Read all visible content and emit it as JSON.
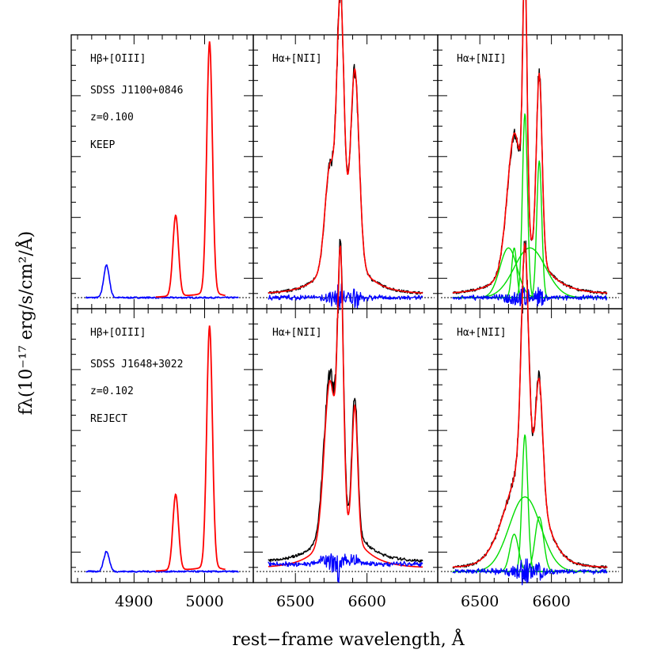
{
  "xlabel": "rest−frame wavelength, Å",
  "ylabel": "fλ(10⁻¹⁷ erg/s/cm²/Å)",
  "colors": {
    "data": "#000000",
    "model": "#ff0000",
    "residual": "#0000ff",
    "components": "#00dd00"
  },
  "chart_data": [
    {
      "type": "line",
      "row": "top",
      "column": "left",
      "label": "Hβ+[OIII]",
      "object": "SDSS J1100+0846",
      "redshift": "z=0.100",
      "decision": "KEEP",
      "xlim": [
        4820,
        5060
      ],
      "x_ticks": [
        4900,
        5000
      ],
      "lines": [
        {
          "center": 4861,
          "amp": 0.13,
          "sigma": 4,
          "series": "residual"
        },
        {
          "center": 4959,
          "amp": 0.32,
          "sigma": 4,
          "series": "model"
        },
        {
          "center": 5007,
          "amp": 1.0,
          "sigma": 4,
          "series": "model"
        }
      ]
    },
    {
      "type": "line",
      "row": "top",
      "column": "middle",
      "label": "Hα+[NII]",
      "xlim": [
        6450,
        6690
      ],
      "x_ticks": [
        6500,
        6600
      ],
      "lines": [
        {
          "center": 6548,
          "amp": 0.38,
          "sigma": 7
        },
        {
          "center": 6563,
          "amp": 1.0,
          "sigma": 5
        },
        {
          "center": 6583,
          "amp": 0.75,
          "sigma": 6
        }
      ]
    },
    {
      "type": "line",
      "row": "top",
      "column": "right",
      "label": "Hα+[NII]",
      "xlim": [
        6450,
        6690
      ],
      "x_ticks": [
        6500,
        6600
      ],
      "lines": [
        {
          "center": 6548,
          "amp": 0.5,
          "sigma": 10
        },
        {
          "center": 6563,
          "amp": 1.0,
          "sigma": 3
        },
        {
          "center": 6583,
          "amp": 0.73,
          "sigma": 4
        }
      ],
      "components": [
        {
          "center": 6563,
          "amp": 0.74,
          "sigma": 3.5
        },
        {
          "center": 6583,
          "amp": 0.55,
          "sigma": 3.5
        },
        {
          "center": 6548,
          "amp": 0.2,
          "sigma": 3.5
        },
        {
          "center": 6540,
          "amp": 0.2,
          "sigma": 12
        },
        {
          "center": 6570,
          "amp": 0.2,
          "sigma": 22
        }
      ]
    },
    {
      "type": "line",
      "row": "bottom",
      "column": "left",
      "label": "Hβ+[OIII]",
      "object": "SDSS J1648+3022",
      "redshift": "z=0.102",
      "decision": "REJECT",
      "xlim": [
        4820,
        5060
      ],
      "x_ticks": [
        4900,
        5000
      ],
      "lines": [
        {
          "center": 4861,
          "amp": 0.08,
          "sigma": 4,
          "series": "residual"
        },
        {
          "center": 4959,
          "amp": 0.3,
          "sigma": 4,
          "series": "model"
        },
        {
          "center": 5007,
          "amp": 0.96,
          "sigma": 4,
          "series": "model"
        }
      ]
    },
    {
      "type": "line",
      "row": "bottom",
      "column": "middle",
      "label": "Hα+[NII]",
      "xlim": [
        6450,
        6690
      ],
      "x_ticks": [
        6500,
        6600
      ],
      "lines": [
        {
          "center": 6548,
          "amp": 0.6,
          "sigma": 8
        },
        {
          "center": 6563,
          "amp": 1.0,
          "sigma": 4
        },
        {
          "center": 6583,
          "amp": 0.52,
          "sigma": 4
        }
      ]
    },
    {
      "type": "line",
      "row": "bottom",
      "column": "right",
      "label": "Hα+[NII]",
      "xlim": [
        6450,
        6690
      ],
      "x_ticks": [
        6500,
        6600
      ],
      "lines": [
        {
          "center": 6563,
          "amp": 0.85,
          "sigma": 5
        },
        {
          "center": 6583,
          "amp": 0.45,
          "sigma": 5
        },
        {
          "center": 6560,
          "amp": 0.3,
          "sigma": 25
        }
      ],
      "components": [
        {
          "center": 6563,
          "amp": 0.55,
          "sigma": 4
        },
        {
          "center": 6583,
          "amp": 0.22,
          "sigma": 6
        },
        {
          "center": 6548,
          "amp": 0.15,
          "sigma": 6
        },
        {
          "center": 6563,
          "amp": 0.3,
          "sigma": 22
        }
      ]
    }
  ]
}
